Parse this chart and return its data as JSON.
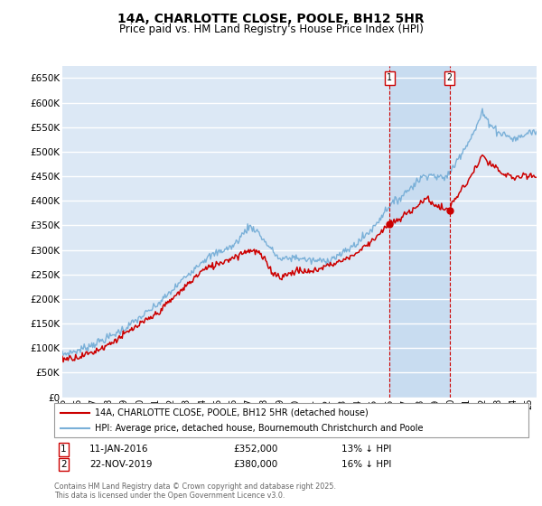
{
  "title": "14A, CHARLOTTE CLOSE, POOLE, BH12 5HR",
  "subtitle": "Price paid vs. HM Land Registry's House Price Index (HPI)",
  "ylim": [
    0,
    675000
  ],
  "yticks": [
    0,
    50000,
    100000,
    150000,
    200000,
    250000,
    300000,
    350000,
    400000,
    450000,
    500000,
    550000,
    600000,
    650000
  ],
  "bg_color": "#dce8f5",
  "shade_color": "#c8dcf0",
  "grid_color": "#ffffff",
  "hpi_color": "#7ab0d8",
  "price_color": "#cc0000",
  "ann_vline_color": "#cc0000",
  "annotation1": {
    "label": "1",
    "x_year": 2016.04,
    "price": 352000,
    "text": "11-JAN-2016",
    "amount": "£352,000",
    "change": "13% ↓ HPI"
  },
  "annotation2": {
    "label": "2",
    "x_year": 2019.9,
    "price": 380000,
    "text": "22-NOV-2019",
    "amount": "£380,000",
    "change": "16% ↓ HPI"
  },
  "legend_label_price": "14A, CHARLOTTE CLOSE, POOLE, BH12 5HR (detached house)",
  "legend_label_hpi": "HPI: Average price, detached house, Bournemouth Christchurch and Poole",
  "footer": "Contains HM Land Registry data © Crown copyright and database right 2025.\nThis data is licensed under the Open Government Licence v3.0.",
  "xmin": 1995,
  "xmax": 2025.5,
  "hpi_anchors_x": [
    1995,
    1996,
    1997,
    1998,
    1999,
    2000,
    2001,
    2002,
    2003,
    2004,
    2005,
    2006,
    2007,
    2007.5,
    2008,
    2009,
    2010,
    2011,
    2012,
    2013,
    2014,
    2015,
    2016,
    2016.5,
    2017,
    2018,
    2018.5,
    2019,
    2019.5,
    2020,
    2020.5,
    2021,
    2021.5,
    2022,
    2022.3,
    2022.8,
    2023,
    2023.5,
    2024,
    2024.5,
    2025,
    2025.5
  ],
  "hpi_anchors_y": [
    87000,
    95000,
    108000,
    122000,
    140000,
    162000,
    185000,
    215000,
    248000,
    278000,
    295000,
    308000,
    348000,
    340000,
    318000,
    280000,
    285000,
    278000,
    278000,
    292000,
    315000,
    345000,
    390000,
    400000,
    415000,
    445000,
    455000,
    450000,
    445000,
    460000,
    490000,
    515000,
    540000,
    580000,
    565000,
    548000,
    540000,
    535000,
    525000,
    530000,
    540000,
    540000
  ],
  "price_anchors_x": [
    1995,
    1996,
    1997,
    1998,
    1999,
    2000,
    2001,
    2002,
    2003,
    2004,
    2005,
    2006,
    2007,
    2007.6,
    2008,
    2008.5,
    2009,
    2009.5,
    2010,
    2011,
    2012,
    2013,
    2014,
    2015,
    2016.04,
    2016.5,
    2017,
    2018,
    2018.5,
    2019,
    2019.9,
    2020,
    2020.5,
    2021,
    2022,
    2022.5,
    2023,
    2023.3,
    2023.8,
    2024,
    2024.5,
    2025,
    2025.5
  ],
  "price_anchors_y": [
    78000,
    82000,
    92000,
    108000,
    128000,
    148000,
    168000,
    198000,
    228000,
    258000,
    272000,
    285000,
    300000,
    295000,
    280000,
    255000,
    245000,
    250000,
    258000,
    255000,
    268000,
    278000,
    295000,
    322000,
    352000,
    358000,
    370000,
    395000,
    405000,
    390000,
    380000,
    390000,
    415000,
    435000,
    490000,
    475000,
    465000,
    450000,
    455000,
    445000,
    448000,
    450000,
    450000
  ]
}
